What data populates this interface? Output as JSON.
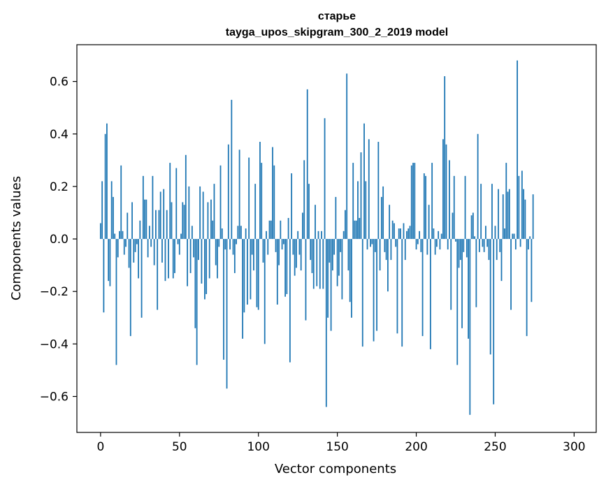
{
  "chart_data": {
    "type": "bar",
    "title_line1": "старье",
    "title_line2": "tayga_upos_skipgram_300_2_2019 model",
    "xlabel": "Vector components",
    "ylabel": "Components values",
    "xlim": [
      -15,
      314
    ],
    "ylim": [
      -0.737,
      0.74
    ],
    "xticks": [
      0,
      50,
      100,
      150,
      200,
      250,
      300
    ],
    "xtick_labels": [
      "0",
      "50",
      "100",
      "150",
      "200",
      "250",
      "300"
    ],
    "yticks": [
      -0.6,
      -0.4,
      -0.2,
      0.0,
      0.2,
      0.4,
      0.6
    ],
    "ytick_labels": [
      "−0.6",
      "−0.4",
      "−0.2",
      "0.0",
      "0.2",
      "0.4",
      "0.6"
    ],
    "bar_color": "#1f77b4",
    "values": [
      0.06,
      0.22,
      -0.28,
      0.4,
      0.44,
      -0.16,
      -0.18,
      0.22,
      0.16,
      0.02,
      -0.48,
      -0.07,
      0.03,
      0.28,
      0.03,
      -0.06,
      -0.03,
      0.1,
      -0.11,
      -0.37,
      0.14,
      -0.09,
      -0.05,
      -0.02,
      -0.15,
      0.07,
      -0.3,
      0.24,
      0.15,
      0.15,
      -0.07,
      0.05,
      -0.03,
      0.24,
      -0.1,
      0.11,
      -0.27,
      0.11,
      0.18,
      -0.09,
      0.19,
      -0.16,
      0.11,
      -0.15,
      0.29,
      0.14,
      -0.15,
      -0.13,
      0.27,
      -0.02,
      -0.06,
      0.02,
      0.14,
      0.13,
      0.32,
      -0.18,
      0.2,
      -0.13,
      0.05,
      -0.07,
      -0.34,
      -0.48,
      -0.08,
      0.2,
      -0.17,
      0.18,
      -0.23,
      -0.21,
      0.14,
      -0.15,
      0.15,
      0.07,
      0.21,
      -0.1,
      -0.15,
      -0.03,
      0.28,
      0.04,
      -0.46,
      -0.04,
      -0.57,
      0.36,
      -0.04,
      0.53,
      -0.06,
      -0.13,
      -0.02,
      0.05,
      0.34,
      0.05,
      -0.38,
      -0.28,
      0.04,
      -0.25,
      0.31,
      -0.23,
      -0.06,
      -0.12,
      0.21,
      -0.26,
      -0.27,
      0.37,
      0.29,
      -0.09,
      -0.4,
      0.03,
      -0.06,
      0.07,
      0.07,
      0.35,
      0.28,
      -0.05,
      -0.25,
      -0.1,
      0.07,
      -0.04,
      -0.02,
      -0.22,
      -0.21,
      0.08,
      -0.47,
      0.25,
      -0.06,
      -0.14,
      -0.11,
      0.03,
      -0.06,
      -0.12,
      0.1,
      0.3,
      -0.31,
      0.57,
      0.21,
      -0.08,
      -0.13,
      -0.19,
      0.13,
      -0.18,
      0.03,
      -0.19,
      0.03,
      -0.19,
      0.46,
      -0.64,
      -0.3,
      -0.09,
      -0.35,
      -0.12,
      -0.06,
      0.16,
      -0.18,
      -0.14,
      -0.05,
      -0.23,
      0.03,
      0.11,
      0.63,
      -0.12,
      -0.24,
      -0.3,
      0.29,
      0.07,
      0.07,
      0.22,
      0.08,
      0.33,
      -0.41,
      0.44,
      0.22,
      -0.04,
      0.38,
      -0.03,
      -0.02,
      -0.39,
      -0.05,
      -0.35,
      0.37,
      -0.12,
      0.16,
      0.2,
      -0.05,
      -0.08,
      -0.2,
      0.13,
      -0.08,
      0.07,
      0.06,
      -0.03,
      -0.36,
      0.04,
      0.04,
      -0.41,
      0.06,
      -0.08,
      0.03,
      0.04,
      0.05,
      0.28,
      0.29,
      0.29,
      -0.04,
      -0.02,
      0.03,
      -0.05,
      -0.37,
      0.25,
      0.24,
      -0.06,
      0.13,
      -0.42,
      0.29,
      0.04,
      -0.06,
      -0.03,
      0.03,
      -0.04,
      0.02,
      0.38,
      0.62,
      0.36,
      -0.04,
      0.3,
      -0.27,
      0.1,
      0.24,
      -0.01,
      -0.48,
      -0.11,
      -0.08,
      -0.34,
      -0.05,
      0.24,
      -0.07,
      -0.38,
      -0.67,
      0.09,
      0.1,
      0.01,
      -0.26,
      0.4,
      -0.05,
      0.21,
      -0.03,
      -0.05,
      0.05,
      -0.03,
      -0.08,
      -0.44,
      0.21,
      -0.63,
      0.05,
      -0.08,
      0.19,
      -0.05,
      -0.16,
      0.17,
      0.04,
      0.29,
      0.18,
      0.19,
      -0.27,
      0.02,
      0.02,
      -0.04,
      0.68,
      0.24,
      -0.03,
      0.26,
      0.19,
      0.15,
      -0.37,
      -0.04,
      0.01,
      -0.24,
      0.17
    ]
  }
}
